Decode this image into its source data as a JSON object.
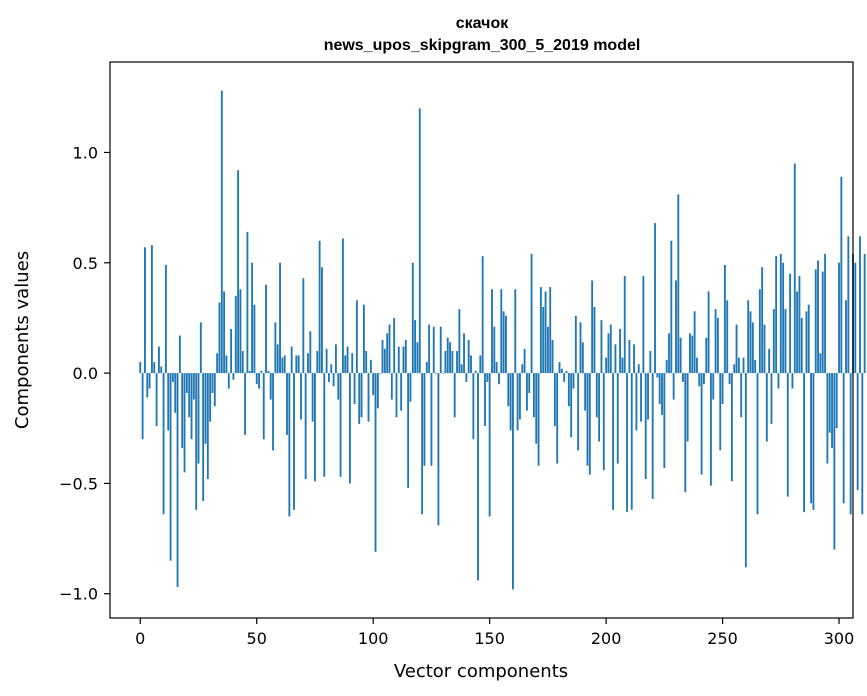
{
  "chart_data": {
    "type": "bar",
    "title": [
      "скачок",
      "news_upos_skipgram_300_5_2019 model"
    ],
    "xlabel": "Vector components",
    "ylabel": "Components values",
    "xlim": [
      -13,
      306
    ],
    "ylim": [
      -1.11,
      1.41
    ],
    "x_ticks": [
      0,
      50,
      100,
      150,
      200,
      250,
      300
    ],
    "x_tick_labels": [
      "0",
      "50",
      "100",
      "150",
      "200",
      "250",
      "300"
    ],
    "y_ticks": [
      -1.0,
      -0.5,
      0.0,
      0.5,
      1.0
    ],
    "y_tick_labels": [
      "−1.0",
      "−0.5",
      "0.0",
      "0.5",
      "1.0"
    ],
    "bar_color": "#1f77b4",
    "grid": false,
    "values": [
      0.05,
      -0.3,
      0.57,
      -0.11,
      -0.07,
      0.58,
      0.05,
      -0.24,
      0.12,
      0.03,
      -0.64,
      0.49,
      -0.26,
      -0.85,
      -0.04,
      -0.18,
      -0.97,
      0.17,
      -0.34,
      -0.45,
      -0.09,
      -0.2,
      -0.3,
      -0.12,
      -0.62,
      -0.41,
      0.23,
      -0.58,
      -0.32,
      -0.48,
      -0.22,
      -0.09,
      -0.15,
      0.09,
      0.32,
      1.28,
      0.37,
      0.08,
      -0.07,
      0.2,
      -0.03,
      0.35,
      0.92,
      0.38,
      0.1,
      -0.28,
      0.64,
      0.01,
      0.5,
      0.31,
      -0.05,
      -0.07,
      0.01,
      -0.3,
      0.4,
      0.01,
      -0.12,
      -0.35,
      0.23,
      0.13,
      0.5,
      0.07,
      0.08,
      -0.28,
      -0.65,
      0.12,
      -0.62,
      0.08,
      0.08,
      -0.21,
      0.43,
      -0.48,
      0.09,
      0.19,
      -0.22,
      -0.49,
      0.1,
      0.6,
      0.48,
      -0.47,
      0.11,
      -0.04,
      0.04,
      -0.06,
      0.13,
      -0.12,
      -0.47,
      0.61,
      0.08,
      0.12,
      -0.5,
      0.09,
      -0.14,
      0.33,
      -0.23,
      -0.2,
      0.31,
      0.1,
      -0.22,
      0.06,
      -0.1,
      -0.81,
      -0.16,
      0.0,
      0.15,
      0.11,
      0.18,
      0.22,
      -0.12,
      0.25,
      -0.2,
      0.12,
      -0.17,
      0.12,
      0.15,
      -0.52,
      -0.13,
      0.5,
      0.24,
      0.14,
      1.2,
      -0.64,
      -0.42,
      0.05,
      0.22,
      -0.42,
      0.21,
      0.0,
      -0.69,
      0.21,
      0.0,
      0.1,
      0.16,
      0.14,
      0.1,
      -0.2,
      0.1,
      0.29,
      0.04,
      0.18,
      -0.04,
      0.15,
      0.08,
      -0.3,
      0.01,
      -0.94,
      0.08,
      0.53,
      -0.24,
      -0.04,
      -0.65,
      0.38,
      0.21,
      0.05,
      -0.05,
      0.38,
      0.28,
      0.26,
      -0.15,
      -0.26,
      -0.98,
      0.38,
      -0.26,
      -0.21,
      0.04,
      0.11,
      -0.17,
      -0.09,
      0.54,
      -0.2,
      -0.32,
      -0.42,
      0.39,
      0.3,
      0.37,
      0.21,
      0.39,
      0.15,
      -0.24,
      -0.41,
      0.05,
      0.02,
      -0.04,
      0.01,
      -0.15,
      -0.29,
      -0.07,
      0.26,
      -0.35,
      0.23,
      0.14,
      -0.17,
      -0.42,
      -0.46,
      0.42,
      0.3,
      -0.2,
      -0.31,
      0.24,
      -0.44,
      0.07,
      0.18,
      0.22,
      -0.62,
      0.13,
      -0.41,
      0.2,
      0.07,
      0.44,
      -0.63,
      0.15,
      -0.62,
      0.13,
      -0.26,
      0.04,
      -0.22,
      0.44,
      -0.48,
      -0.21,
      0.1,
      -0.57,
      0.68,
      -0.02,
      -0.14,
      -0.19,
      -0.43,
      0.06,
      0.18,
      0.6,
      -0.12,
      0.42,
      0.81,
      0.16,
      -0.04,
      -0.54,
      -0.31,
      0.18,
      0.17,
      0.28,
      0.07,
      -0.06,
      -0.46,
      -0.05,
      0.16,
      0.37,
      -0.51,
      -0.12,
      0.29,
      0.25,
      -0.35,
      -0.14,
      0.49,
      0.33,
      -0.05,
      -0.49,
      0.04,
      0.22,
      0.07,
      -0.2,
      0.07,
      -0.88,
      0.33,
      0.28,
      0.23,
      0.06,
      -0.64,
      0.38,
      0.48,
      0.22,
      -0.31,
      0.11,
      -0.23,
      0.29,
      0.53,
      -0.07,
      0.54,
      0.5,
      0.29,
      -0.56,
      0.45,
      -0.07,
      0.95,
      0.37,
      0.44,
      0.25,
      -0.63,
      0.28,
      0.31,
      -0.59,
      -0.62,
      0.47,
      0.51,
      0.09,
      0.46,
      0.54,
      -0.41,
      -0.27,
      -0.34,
      -0.8,
      -0.25,
      0.5,
      0.89,
      -0.59,
      0.33,
      0.62,
      -0.64,
      0.54,
      0.5,
      -0.53,
      0.62,
      -0.64,
      0.54
    ]
  }
}
